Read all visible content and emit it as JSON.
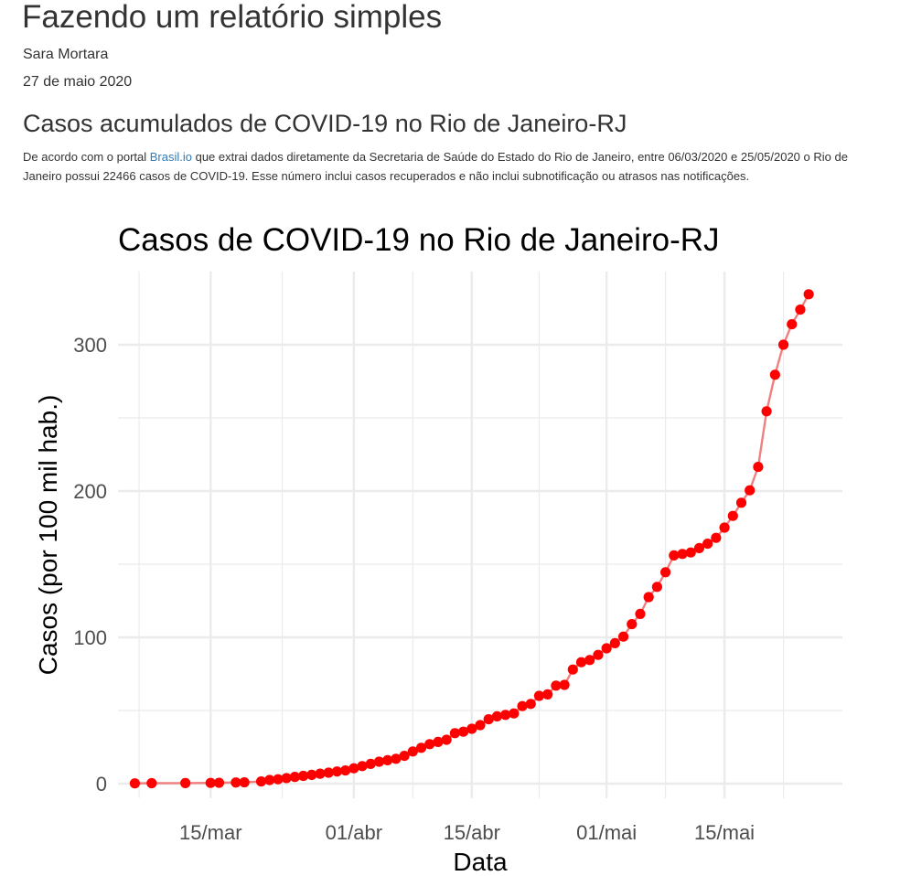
{
  "doc": {
    "title": "Fazendo um relatório simples",
    "author": "Sara Mortara",
    "date": "27 de maio 2020",
    "section_title": "Casos acumulados de COVID-19 no Rio de Janeiro-RJ",
    "paragraph": {
      "part1": "De acordo com o portal ",
      "link_text": "Brasil.io",
      "part2": " que extrai dados diretamente da Secretaria de Saúde do Estado do Rio de Janeiro, entre 06/03/2020 e 25/05/2020 o Rio de Janeiro possui 22466 casos de COVID-19. Esse número inclui casos recuperados e não inclui subnotificação ou atrasos nas notificações."
    }
  },
  "colors": {
    "point": "#ff0000",
    "line": "#f08080",
    "grid": "#ebebeb",
    "text": "#333333",
    "link": "#337ab7"
  },
  "chart_data": {
    "type": "line",
    "title": "Casos de COVID-19 no Rio de Janeiro-RJ",
    "xlabel": "Data",
    "ylabel": "Casos (por 100 mil hab.)",
    "xlim": [
      "2020-03-04",
      "2020-05-29"
    ],
    "ylim": [
      -10,
      350
    ],
    "x_ticks": [
      {
        "date": "2020-03-15",
        "label": "15/mar"
      },
      {
        "date": "2020-04-01",
        "label": "01/abr"
      },
      {
        "date": "2020-04-15",
        "label": "15/abr"
      },
      {
        "date": "2020-05-01",
        "label": "01/mai"
      },
      {
        "date": "2020-05-15",
        "label": "15/mai"
      }
    ],
    "y_ticks": [
      0,
      100,
      200,
      300
    ],
    "grid": true,
    "series": [
      {
        "markers": true,
        "points": [
          [
            "2020-03-06",
            0.2
          ],
          [
            "2020-03-08",
            0.3
          ],
          [
            "2020-03-12",
            0.4
          ],
          [
            "2020-03-15",
            0.5
          ],
          [
            "2020-03-16",
            0.6
          ],
          [
            "2020-03-18",
            0.8
          ],
          [
            "2020-03-19",
            0.9
          ],
          [
            "2020-03-21",
            1.5
          ],
          [
            "2020-03-22",
            2.5
          ],
          [
            "2020-03-23",
            3.0
          ],
          [
            "2020-03-24",
            3.8
          ],
          [
            "2020-03-25",
            4.6
          ],
          [
            "2020-03-26",
            5.3
          ],
          [
            "2020-03-27",
            6.0
          ],
          [
            "2020-03-28",
            6.8
          ],
          [
            "2020-03-29",
            7.5
          ],
          [
            "2020-03-30",
            8.3
          ],
          [
            "2020-03-31",
            9.0
          ],
          [
            "2020-04-01",
            10.5
          ],
          [
            "2020-04-02",
            12.0
          ],
          [
            "2020-04-03",
            13.5
          ],
          [
            "2020-04-04",
            15.0
          ],
          [
            "2020-04-05",
            16.0
          ],
          [
            "2020-04-06",
            17.0
          ],
          [
            "2020-04-07",
            19.0
          ],
          [
            "2020-04-08",
            22.0
          ],
          [
            "2020-04-09",
            24.5
          ],
          [
            "2020-04-10",
            27.0
          ],
          [
            "2020-04-11",
            28.5
          ],
          [
            "2020-04-12",
            30.0
          ],
          [
            "2020-04-13",
            34.5
          ],
          [
            "2020-04-14",
            35.5
          ],
          [
            "2020-04-15",
            37.5
          ],
          [
            "2020-04-16",
            40.0
          ],
          [
            "2020-04-17",
            44.0
          ],
          [
            "2020-04-18",
            46.0
          ],
          [
            "2020-04-19",
            47.0
          ],
          [
            "2020-04-20",
            48.0
          ],
          [
            "2020-04-21",
            53.0
          ],
          [
            "2020-04-22",
            54.5
          ],
          [
            "2020-04-23",
            60.0
          ],
          [
            "2020-04-24",
            61.0
          ],
          [
            "2020-04-25",
            67.0
          ],
          [
            "2020-04-26",
            67.5
          ],
          [
            "2020-04-27",
            78.0
          ],
          [
            "2020-04-28",
            83.0
          ],
          [
            "2020-04-29",
            84.5
          ],
          [
            "2020-04-30",
            88.0
          ],
          [
            "2020-05-01",
            92.5
          ],
          [
            "2020-05-02",
            96.0
          ],
          [
            "2020-05-03",
            100.5
          ],
          [
            "2020-05-04",
            109.0
          ],
          [
            "2020-05-05",
            116.0
          ],
          [
            "2020-05-06",
            127.5
          ],
          [
            "2020-05-07",
            134.5
          ],
          [
            "2020-05-08",
            144.5
          ],
          [
            "2020-05-09",
            156.0
          ],
          [
            "2020-05-10",
            157.0
          ],
          [
            "2020-05-11",
            158.0
          ],
          [
            "2020-05-12",
            161.0
          ],
          [
            "2020-05-13",
            164.0
          ],
          [
            "2020-05-14",
            168.0
          ],
          [
            "2020-05-15",
            175.0
          ],
          [
            "2020-05-16",
            183.0
          ],
          [
            "2020-05-17",
            192.0
          ],
          [
            "2020-05-18",
            200.5
          ],
          [
            "2020-05-19",
            216.5
          ],
          [
            "2020-05-20",
            254.5
          ],
          [
            "2020-05-21",
            279.5
          ],
          [
            "2020-05-22",
            300.0
          ],
          [
            "2020-05-23",
            314.0
          ],
          [
            "2020-05-24",
            324.0
          ],
          [
            "2020-05-25",
            334.5
          ]
        ]
      }
    ]
  }
}
